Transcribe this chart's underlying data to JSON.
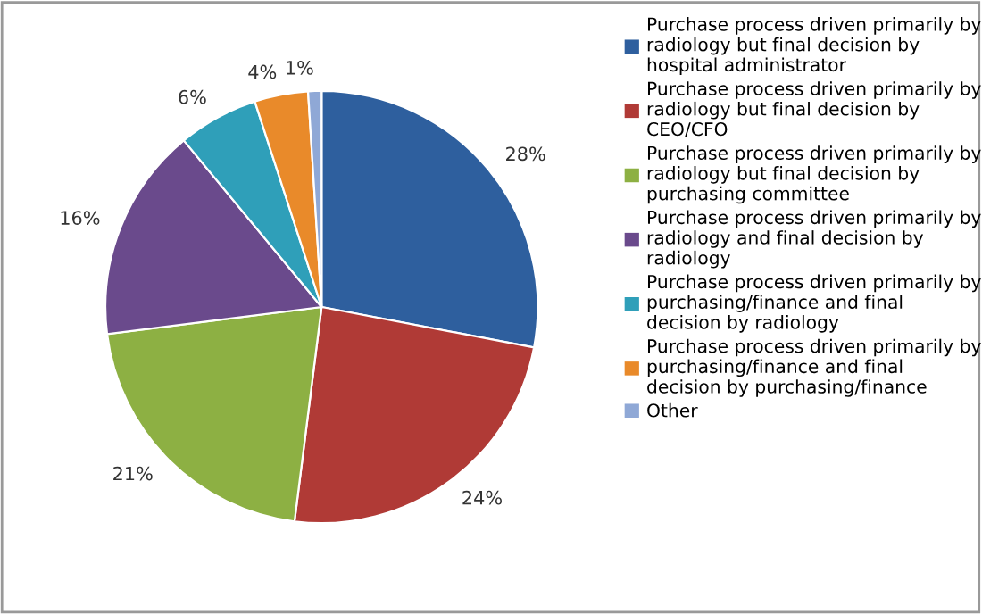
{
  "chart_data": {
    "type": "pie",
    "categories": [
      "Purchase process driven primarily by radiology but final decision by hospital administrator",
      "Purchase process driven primarily by radiology but final decision by CEO/CFO",
      "Purchase process driven primarily by radiology but final decision by purchasing committee",
      "Purchase process driven primarily by radiology and final decision by radiology",
      "Purchase process driven primarily by purchasing/finance and final decision by radiology",
      "Purchase process driven primarily by purchasing/finance and final decision by purchasing/finance",
      "Other"
    ],
    "values": [
      28,
      24,
      21,
      16,
      6,
      4,
      1
    ],
    "value_labels": [
      "28%",
      "24%",
      "21%",
      "16%",
      "6%",
      "4%",
      "1%"
    ],
    "colors": [
      "#2e5f9e",
      "#b03a36",
      "#8db043",
      "#6a4a8c",
      "#2f9fb9",
      "#e98a2a",
      "#8fa8d6"
    ],
    "legend": "right"
  }
}
